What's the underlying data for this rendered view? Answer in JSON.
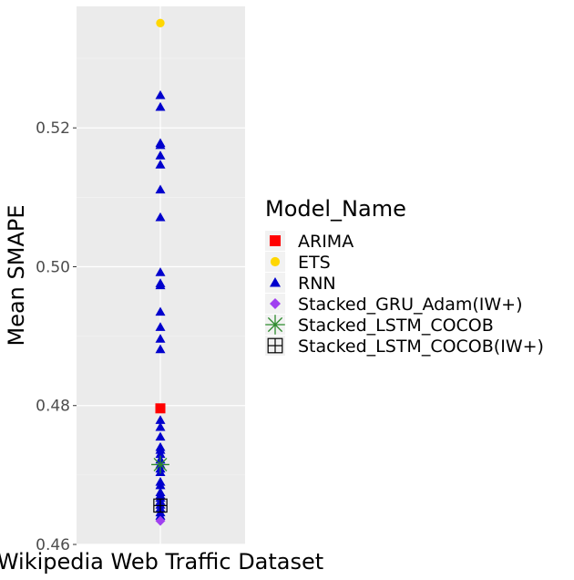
{
  "chart_data": {
    "type": "scatter",
    "xlabel": "",
    "ylabel": "Mean SMAPE",
    "x_categories": [
      "Wikipedia Web Traffic Dataset"
    ],
    "y_ticks": [
      0.46,
      0.48,
      0.5,
      0.52
    ],
    "ylim": [
      0.46,
      0.5375
    ],
    "grid": true,
    "legend": {
      "title": "Model_Name",
      "placement": "right",
      "entries": [
        "ARIMA",
        "ETS",
        "RNN",
        "Stacked_GRU_Adam(IW+)",
        "Stacked_LSTM_COCOB",
        "Stacked_LSTM_COCOB(IW+)"
      ]
    },
    "series": [
      {
        "name": "ARIMA",
        "shape": "square",
        "color": "#ff0000",
        "x": [
          "Wikipedia Web Traffic Dataset"
        ],
        "y": [
          0.4796
        ]
      },
      {
        "name": "ETS",
        "shape": "circle",
        "color": "#ffd700",
        "x": [
          "Wikipedia Web Traffic Dataset"
        ],
        "y": [
          0.5351
        ]
      },
      {
        "name": "RNN",
        "shape": "triangle",
        "color": "#0000cd",
        "y": [
          0.5247,
          0.523,
          0.5178,
          0.5175,
          0.516,
          0.5147,
          0.5111,
          0.5071,
          0.4992,
          0.4976,
          0.4973,
          0.4935,
          0.4913,
          0.4896,
          0.4881,
          0.4779,
          0.4769,
          0.4755,
          0.474,
          0.4736,
          0.473,
          0.4722,
          0.4715,
          0.4709,
          0.4704,
          0.469,
          0.4685,
          0.4675,
          0.4671,
          0.4667,
          0.4662,
          0.4657,
          0.4652,
          0.4646,
          0.4641
        ]
      },
      {
        "name": "Stacked_GRU_Adam(IW+)",
        "shape": "diamond",
        "color": "#a040f0",
        "x": [
          "Wikipedia Web Traffic Dataset"
        ],
        "y": [
          0.4634
        ]
      },
      {
        "name": "Stacked_LSTM_COCOB",
        "shape": "asterisk",
        "color": "#2e8b2e",
        "x": [
          "Wikipedia Web Traffic Dataset"
        ],
        "y": [
          0.4715
        ]
      },
      {
        "name": "Stacked_LSTM_COCOB(IW+)",
        "shape": "boxplus",
        "color": "#000000",
        "x": [
          "Wikipedia Web Traffic Dataset"
        ],
        "y": [
          0.4656
        ]
      }
    ]
  }
}
